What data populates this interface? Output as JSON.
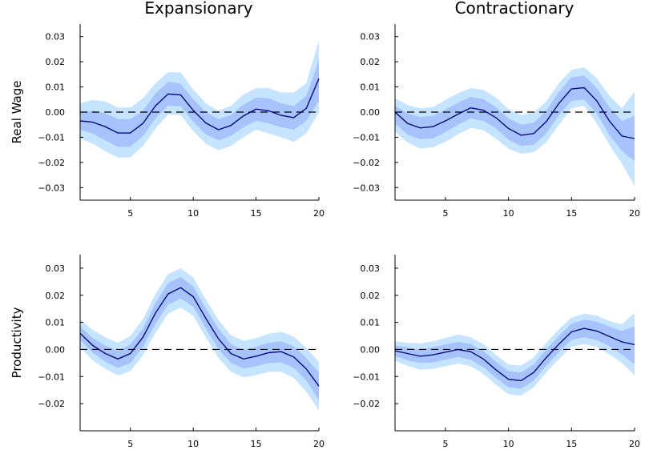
{
  "figure": {
    "column_titles": [
      "Expansionary",
      "Contractionary"
    ],
    "row_labels": [
      "Real Wage",
      "Productivity"
    ]
  },
  "colors": {
    "outer_band": "#c6e3ff",
    "inner_band": "#a6c4fb",
    "line": "#0a0a80",
    "zero_line": "#000000"
  },
  "chart_data": [
    {
      "type": "line",
      "column": "Expansionary",
      "row": "Real Wage",
      "xlim": [
        1,
        20
      ],
      "ylim": [
        -0.035,
        0.035
      ],
      "xticks": [
        5,
        10,
        15,
        20
      ],
      "yticks": [
        -0.03,
        -0.02,
        -0.01,
        0.0,
        0.01,
        0.02,
        0.03
      ],
      "ytick_labels": [
        "−0.03",
        "−0.02",
        "−0.01",
        "0.00",
        "0.01",
        "0.02",
        "0.03"
      ],
      "zero_line": true,
      "x": [
        1,
        2,
        3,
        4,
        5,
        6,
        7,
        8,
        9,
        10,
        11,
        12,
        13,
        14,
        15,
        16,
        17,
        18,
        19,
        20
      ],
      "mean": [
        -0.0035,
        -0.004,
        -0.0058,
        -0.0083,
        -0.0083,
        -0.0045,
        0.0025,
        0.0072,
        0.0068,
        0.0007,
        -0.0043,
        -0.007,
        -0.0053,
        -0.0015,
        0.0012,
        0.0005,
        -0.0013,
        -0.0022,
        0.0015,
        0.0133
      ],
      "inner_lower": [
        -0.007,
        -0.0085,
        -0.0113,
        -0.0138,
        -0.0138,
        -0.0095,
        -0.0025,
        0.0025,
        0.0023,
        -0.0038,
        -0.0088,
        -0.0112,
        -0.0095,
        -0.006,
        -0.0035,
        -0.0045,
        -0.006,
        -0.007,
        -0.0035,
        0.0045
      ],
      "inner_upper": [
        0.0,
        0.0005,
        -0.0005,
        -0.0028,
        -0.0028,
        0.0005,
        0.0075,
        0.012,
        0.0112,
        0.0052,
        0.0,
        -0.0028,
        -0.0012,
        0.003,
        0.0058,
        0.0055,
        0.0035,
        0.0025,
        0.0065,
        0.0205
      ],
      "outer_lower": [
        -0.0105,
        -0.0125,
        -0.0155,
        -0.018,
        -0.018,
        -0.0135,
        -0.0065,
        -0.001,
        -0.0012,
        -0.0075,
        -0.0125,
        -0.0152,
        -0.0135,
        -0.01,
        -0.007,
        -0.0085,
        -0.01,
        -0.0118,
        -0.0085,
        0.0
      ],
      "outer_upper": [
        0.0035,
        0.0048,
        0.0042,
        0.0018,
        0.0018,
        0.0055,
        0.0115,
        0.0158,
        0.0158,
        0.009,
        0.0035,
        0.0005,
        0.0025,
        0.007,
        0.0095,
        0.0095,
        0.0078,
        0.0078,
        0.0115,
        0.0285
      ]
    },
    {
      "type": "line",
      "column": "Contractionary",
      "row": "Real Wage",
      "xlim": [
        1,
        20
      ],
      "ylim": [
        -0.035,
        0.035
      ],
      "xticks": [
        5,
        10,
        15,
        20
      ],
      "yticks": [
        -0.03,
        -0.02,
        -0.01,
        0.0,
        0.01,
        0.02,
        0.03
      ],
      "ytick_labels": [
        "−0.03",
        "−0.02",
        "−0.01",
        "0.00",
        "0.01",
        "0.02",
        "0.03"
      ],
      "zero_line": true,
      "x": [
        1,
        2,
        3,
        4,
        5,
        6,
        7,
        8,
        9,
        10,
        11,
        12,
        13,
        14,
        15,
        16,
        17,
        18,
        19,
        20
      ],
      "mean": [
        0.0,
        -0.0045,
        -0.0063,
        -0.0058,
        -0.0035,
        -0.0008,
        0.0017,
        0.0008,
        -0.0022,
        -0.0065,
        -0.0092,
        -0.0085,
        -0.0038,
        0.0035,
        0.0092,
        0.0097,
        0.0045,
        -0.0035,
        -0.0095,
        -0.0105
      ],
      "inner_lower": [
        -0.0045,
        -0.009,
        -0.0108,
        -0.0105,
        -0.008,
        -0.005,
        -0.0025,
        -0.0035,
        -0.0065,
        -0.011,
        -0.0135,
        -0.013,
        -0.0085,
        -0.0012,
        0.0045,
        0.005,
        -0.0005,
        -0.009,
        -0.0155,
        -0.0195
      ],
      "inner_upper": [
        0.0025,
        -0.0005,
        -0.002,
        -0.0015,
        0.001,
        0.0038,
        0.006,
        0.0052,
        0.002,
        -0.0025,
        -0.005,
        -0.0042,
        0.0005,
        0.008,
        0.0138,
        0.0145,
        0.0095,
        0.002,
        -0.0035,
        -0.0015
      ],
      "outer_lower": [
        -0.0078,
        -0.012,
        -0.0145,
        -0.014,
        -0.0118,
        -0.0088,
        -0.0063,
        -0.0072,
        -0.0105,
        -0.0145,
        -0.0165,
        -0.016,
        -0.012,
        -0.005,
        0.0015,
        0.0025,
        -0.0045,
        -0.013,
        -0.0205,
        -0.0295
      ],
      "outer_upper": [
        0.0055,
        0.0028,
        0.0015,
        0.002,
        0.0048,
        0.0075,
        0.0095,
        0.0088,
        0.0058,
        0.0012,
        -0.0012,
        -0.0002,
        0.0042,
        0.0115,
        0.0168,
        0.0178,
        0.0135,
        0.0065,
        0.0015,
        0.0082
      ]
    },
    {
      "type": "line",
      "column": "Expansionary",
      "row": "Productivity",
      "xlim": [
        1,
        20
      ],
      "ylim": [
        -0.03,
        0.035
      ],
      "xticks": [
        5,
        10,
        15,
        20
      ],
      "yticks": [
        -0.02,
        -0.01,
        0.0,
        0.01,
        0.02,
        0.03
      ],
      "ytick_labels": [
        "−0.02",
        "−0.01",
        "0.00",
        "0.01",
        "0.02",
        "0.03"
      ],
      "zero_line": true,
      "x": [
        1,
        2,
        3,
        4,
        5,
        6,
        7,
        8,
        9,
        10,
        11,
        12,
        13,
        14,
        15,
        16,
        17,
        18,
        19,
        20
      ],
      "mean": [
        0.006,
        0.0015,
        -0.0015,
        -0.0035,
        -0.0015,
        0.0045,
        0.0135,
        0.0205,
        0.0228,
        0.0195,
        0.0115,
        0.004,
        -0.0015,
        -0.0035,
        -0.0025,
        -0.0012,
        -0.0008,
        -0.0028,
        -0.0072,
        -0.0135
      ],
      "inner_lower": [
        0.0035,
        -0.0012,
        -0.0045,
        -0.0068,
        -0.005,
        0.001,
        0.0095,
        0.0165,
        0.0188,
        0.0158,
        0.0078,
        0.0002,
        -0.005,
        -0.007,
        -0.0062,
        -0.005,
        -0.0048,
        -0.0068,
        -0.0115,
        -0.0188
      ],
      "inner_upper": [
        0.0085,
        0.0042,
        0.0015,
        -0.0005,
        0.0018,
        0.0078,
        0.0172,
        0.0245,
        0.0268,
        0.0232,
        0.0152,
        0.0078,
        0.002,
        -0.0002,
        0.001,
        0.0025,
        0.003,
        0.0012,
        -0.0032,
        -0.0085
      ],
      "outer_lower": [
        0.0008,
        -0.004,
        -0.0072,
        -0.0095,
        -0.008,
        -0.0022,
        0.0062,
        0.0132,
        0.0155,
        0.0125,
        0.0045,
        -0.003,
        -0.0082,
        -0.0102,
        -0.0095,
        -0.0082,
        -0.0082,
        -0.0105,
        -0.0155,
        -0.0225
      ],
      "outer_upper": [
        0.0112,
        0.0072,
        0.0045,
        0.0025,
        0.005,
        0.0112,
        0.0205,
        0.0278,
        0.03,
        0.0265,
        0.0185,
        0.011,
        0.0052,
        0.0032,
        0.0042,
        0.0058,
        0.0065,
        0.0048,
        0.0005,
        -0.0045
      ]
    },
    {
      "type": "line",
      "column": "Contractionary",
      "row": "Productivity",
      "xlim": [
        1,
        20
      ],
      "ylim": [
        -0.03,
        0.035
      ],
      "xticks": [
        5,
        10,
        15,
        20
      ],
      "yticks": [
        -0.02,
        -0.01,
        0.0,
        0.01,
        0.02,
        0.03
      ],
      "ytick_labels": [
        "−0.02",
        "−0.01",
        "0.00",
        "0.01",
        "0.02",
        "0.03"
      ],
      "zero_line": true,
      "x": [
        1,
        2,
        3,
        4,
        5,
        6,
        7,
        8,
        9,
        10,
        11,
        12,
        13,
        14,
        15,
        16,
        17,
        18,
        19,
        20
      ],
      "mean": [
        -0.0005,
        -0.0015,
        -0.0025,
        -0.002,
        -0.001,
        0.0,
        -0.0008,
        -0.0035,
        -0.0075,
        -0.011,
        -0.0115,
        -0.0085,
        -0.003,
        0.002,
        0.0065,
        0.0078,
        0.0068,
        0.0048,
        0.0028,
        0.0018
      ],
      "inner_lower": [
        -0.0025,
        -0.004,
        -0.005,
        -0.0048,
        -0.0038,
        -0.0028,
        -0.0038,
        -0.0065,
        -0.0105,
        -0.014,
        -0.0145,
        -0.0115,
        -0.006,
        -0.001,
        0.0035,
        0.0045,
        0.0035,
        0.0012,
        -0.0018,
        -0.0055
      ],
      "inner_upper": [
        0.0015,
        0.0008,
        0.0,
        0.0008,
        0.0018,
        0.0028,
        0.002,
        -0.0005,
        -0.0045,
        -0.008,
        -0.0085,
        -0.0055,
        0.0,
        0.005,
        0.0095,
        0.011,
        0.0102,
        0.0085,
        0.0068,
        0.0085
      ],
      "outer_lower": [
        -0.0042,
        -0.006,
        -0.0075,
        -0.0072,
        -0.0062,
        -0.0052,
        -0.0062,
        -0.009,
        -0.013,
        -0.0165,
        -0.017,
        -0.014,
        -0.0085,
        -0.0035,
        0.001,
        0.002,
        0.001,
        -0.0018,
        -0.005,
        -0.0095
      ],
      "outer_upper": [
        0.003,
        0.0025,
        0.0022,
        0.003,
        0.0042,
        0.0055,
        0.0045,
        0.002,
        -0.002,
        -0.0055,
        -0.006,
        -0.003,
        0.0025,
        0.0075,
        0.0118,
        0.0132,
        0.0125,
        0.0105,
        0.0092,
        0.0135
      ]
    }
  ]
}
